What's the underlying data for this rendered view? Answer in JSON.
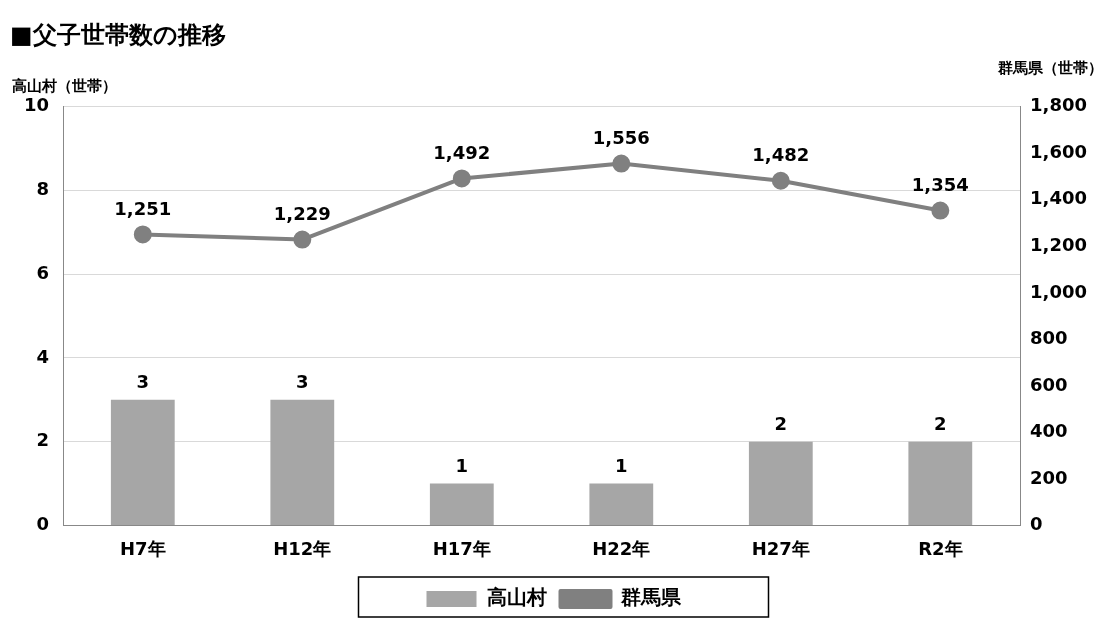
{
  "chart_data": {
    "type": "bar",
    "title": "■父子世帯数の推移",
    "ylabel": "高山村（世帯）",
    "y2label": "群馬県（世帯）",
    "categories": [
      "H7年",
      "H12年",
      "H17年",
      "H22年",
      "H27年",
      "R2年"
    ],
    "series": [
      {
        "name": "高山村",
        "color": "#a6a6a6",
        "values": [
          3,
          3,
          1,
          1,
          2,
          2
        ],
        "value_labels": [
          "3",
          "3",
          "1",
          "1",
          "2",
          "2"
        ]
      },
      {
        "name": "群馬県",
        "type": "line",
        "axis": "y2",
        "color": "#808080",
        "marker": "circle",
        "values": [
          1251,
          1229,
          1492,
          1556,
          1482,
          1354
        ],
        "value_labels": [
          "1,251",
          "1,229",
          "1,492",
          "1,556",
          "1,482",
          "1,354"
        ]
      }
    ],
    "ylim": [
      0,
      10
    ],
    "yticks": [
      0,
      2,
      4,
      6,
      8,
      10
    ],
    "y2lim": [
      0,
      1800
    ],
    "y2ticks": [
      0,
      {
        "value": 200,
        "label": "200"
      },
      {
        "value": 400,
        "label": "400"
      },
      {
        "value": 600,
        "label": "600"
      },
      {
        "value": 800,
        "label": "800"
      },
      {
        "value": 1000,
        "label": "1,000"
      },
      {
        "value": 1200,
        "label": "1,200"
      },
      {
        "value": 1400,
        "label": "1,400"
      },
      {
        "value": 1600,
        "label": "1,600"
      },
      {
        "value": 1800,
        "label": "1,800"
      }
    ],
    "grid": "y",
    "legend": "bottom"
  }
}
